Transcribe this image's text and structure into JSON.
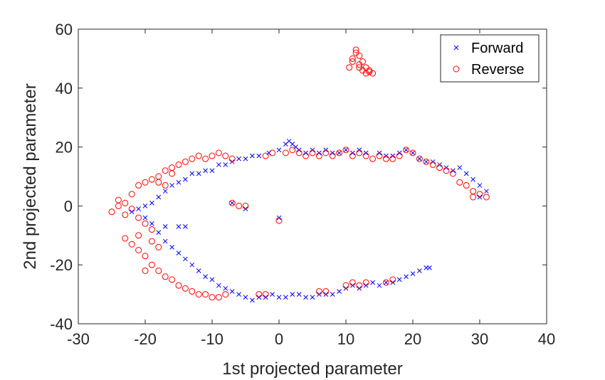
{
  "chart_data": {
    "type": "scatter",
    "title": "",
    "xlabel": "1st projected parameter",
    "ylabel": "2nd projected parameter",
    "xlim": [
      -30,
      40
    ],
    "ylim": [
      -40,
      60
    ],
    "xticks": [
      -30,
      -20,
      -10,
      0,
      10,
      20,
      30,
      40
    ],
    "yticks": [
      -40,
      -20,
      0,
      20,
      40,
      60
    ],
    "grid": false,
    "legend_position": "top-right",
    "series": [
      {
        "name": "Forward",
        "marker": "x",
        "color": "#0000ff",
        "points": [
          [
            -3,
            17
          ],
          [
            -1.5,
            18
          ],
          [
            0,
            19
          ],
          [
            1,
            21
          ],
          [
            1.5,
            22
          ],
          [
            2,
            21
          ],
          [
            2.5,
            20
          ],
          [
            3,
            19
          ],
          [
            4,
            18
          ],
          [
            5,
            19
          ],
          [
            6,
            18
          ],
          [
            7,
            19
          ],
          [
            8,
            18
          ],
          [
            9,
            18
          ],
          [
            10,
            19
          ],
          [
            11,
            18
          ],
          [
            12,
            19
          ],
          [
            13,
            18
          ],
          [
            15,
            18
          ],
          [
            16,
            17
          ],
          [
            17,
            17
          ],
          [
            18,
            18
          ],
          [
            19,
            19
          ],
          [
            20,
            18
          ],
          [
            21,
            16
          ],
          [
            22,
            15
          ],
          [
            23,
            15
          ],
          [
            24,
            14
          ],
          [
            25,
            13
          ],
          [
            26,
            12
          ],
          [
            27,
            13
          ],
          [
            28,
            11
          ],
          [
            29,
            9
          ],
          [
            30,
            7
          ],
          [
            31,
            5
          ],
          [
            30,
            3
          ],
          [
            -4,
            17
          ],
          [
            -5,
            16
          ],
          [
            -6,
            16
          ],
          [
            -7,
            15
          ],
          [
            -8,
            14
          ],
          [
            -9,
            14
          ],
          [
            -10,
            12
          ],
          [
            -11,
            12
          ],
          [
            -12,
            11
          ],
          [
            -13,
            11
          ],
          [
            -14,
            9
          ],
          [
            -15,
            8
          ],
          [
            -16,
            7
          ],
          [
            -17,
            5
          ],
          [
            -18,
            3
          ],
          [
            -19,
            1
          ],
          [
            -20,
            0
          ],
          [
            -21,
            -1
          ],
          [
            -22,
            -2
          ],
          [
            -20,
            -4
          ],
          [
            -19,
            -6
          ],
          [
            -17,
            -7
          ],
          [
            -15,
            -7
          ],
          [
            -18,
            -9
          ],
          [
            -17,
            -12
          ],
          [
            -16,
            -14
          ],
          [
            -15,
            -16
          ],
          [
            -14,
            -18
          ],
          [
            -13,
            -20
          ],
          [
            -12,
            -22
          ],
          [
            -11,
            -24
          ],
          [
            -10,
            -25
          ],
          [
            -9,
            -27
          ],
          [
            -8,
            -28
          ],
          [
            -7,
            -29
          ],
          [
            -6,
            -30
          ],
          [
            -5,
            -31
          ],
          [
            -4,
            -32
          ],
          [
            -3,
            -31
          ],
          [
            -2,
            -31
          ],
          [
            -1,
            -30
          ],
          [
            0,
            -31
          ],
          [
            1,
            -31
          ],
          [
            2,
            -30
          ],
          [
            3,
            -30
          ],
          [
            4,
            -31
          ],
          [
            5,
            -31
          ],
          [
            6,
            -30
          ],
          [
            7,
            -30
          ],
          [
            8,
            -30
          ],
          [
            9,
            -29
          ],
          [
            10,
            -28
          ],
          [
            11,
            -27
          ],
          [
            12,
            -28
          ],
          [
            13,
            -27
          ],
          [
            14,
            -26
          ],
          [
            15,
            -27
          ],
          [
            16,
            -26
          ],
          [
            17,
            -26
          ],
          [
            18,
            -25
          ],
          [
            19,
            -24
          ],
          [
            20,
            -23
          ],
          [
            21,
            -22
          ],
          [
            22,
            -21
          ],
          [
            22.5,
            -21
          ],
          [
            -5,
            -1
          ],
          [
            -7,
            1
          ],
          [
            0,
            -4
          ],
          [
            -14,
            -7
          ]
        ]
      },
      {
        "name": "Reverse",
        "marker": "o",
        "color": "#ff0000",
        "points": [
          [
            -25,
            -2
          ],
          [
            -24,
            0
          ],
          [
            -24,
            2
          ],
          [
            -23,
            -3
          ],
          [
            -23,
            1
          ],
          [
            -22,
            4
          ],
          [
            -22,
            -1
          ],
          [
            -21,
            7
          ],
          [
            -21,
            -4
          ],
          [
            -20,
            8
          ],
          [
            -20,
            -6
          ],
          [
            -19,
            9
          ],
          [
            -19,
            -8
          ],
          [
            -18,
            10
          ],
          [
            -18,
            8
          ],
          [
            -17,
            12
          ],
          [
            -17,
            7
          ],
          [
            -16,
            13
          ],
          [
            -16,
            11
          ],
          [
            -15,
            14
          ],
          [
            -14,
            15
          ],
          [
            -13,
            16
          ],
          [
            -12,
            17
          ],
          [
            -11,
            16
          ],
          [
            -10,
            17
          ],
          [
            -9,
            18
          ],
          [
            -8,
            17
          ],
          [
            -7,
            16
          ],
          [
            -2,
            17
          ],
          [
            -1,
            18
          ],
          [
            1,
            18
          ],
          [
            2,
            19
          ],
          [
            3,
            18
          ],
          [
            4,
            17
          ],
          [
            5,
            18
          ],
          [
            6,
            17
          ],
          [
            7,
            18
          ],
          [
            8,
            17
          ],
          [
            9,
            18
          ],
          [
            10,
            19
          ],
          [
            11,
            17
          ],
          [
            12,
            18
          ],
          [
            13,
            17
          ],
          [
            14,
            16
          ],
          [
            15,
            17
          ],
          [
            16,
            16
          ],
          [
            17,
            16
          ],
          [
            18,
            17
          ],
          [
            19,
            19
          ],
          [
            20,
            18
          ],
          [
            21,
            16
          ],
          [
            22,
            15
          ],
          [
            23,
            14
          ],
          [
            24,
            13
          ],
          [
            25,
            12
          ],
          [
            26,
            11
          ],
          [
            27,
            8
          ],
          [
            28,
            7
          ],
          [
            29,
            5
          ],
          [
            29,
            3
          ],
          [
            30,
            4
          ],
          [
            31,
            3
          ],
          [
            -23,
            -11
          ],
          [
            -22,
            -13
          ],
          [
            -21,
            -15
          ],
          [
            -20,
            -17
          ],
          [
            -19,
            -20
          ],
          [
            -18,
            -22
          ],
          [
            -20,
            -22
          ],
          [
            -21,
            -10
          ],
          [
            -19,
            -12
          ],
          [
            -18,
            -14
          ],
          [
            -17,
            -24
          ],
          [
            -16,
            -25
          ],
          [
            -15,
            -27
          ],
          [
            -14,
            -28
          ],
          [
            -13,
            -29
          ],
          [
            -12,
            -30
          ],
          [
            -11,
            -30
          ],
          [
            -10,
            -31
          ],
          [
            -9,
            -31
          ],
          [
            -8,
            -30
          ],
          [
            -3,
            -30
          ],
          [
            -2,
            -30
          ],
          [
            6,
            -29
          ],
          [
            7,
            -29
          ],
          [
            10,
            -27
          ],
          [
            11,
            -26
          ],
          [
            12,
            -27
          ],
          [
            13,
            -26
          ],
          [
            16,
            -26
          ],
          [
            17,
            -25
          ],
          [
            -7,
            1
          ],
          [
            -6,
            0
          ],
          [
            -5,
            0
          ],
          [
            0,
            -5
          ],
          [
            10.5,
            47
          ],
          [
            11,
            50
          ],
          [
            11.5,
            52
          ],
          [
            12,
            51
          ],
          [
            12.5,
            49
          ],
          [
            13,
            47
          ],
          [
            13.5,
            46
          ],
          [
            14,
            45
          ],
          [
            11.5,
            53
          ],
          [
            12,
            48
          ],
          [
            12.5,
            46
          ],
          [
            13,
            45
          ],
          [
            13.5,
            45.5
          ],
          [
            12,
            47
          ],
          [
            11,
            49
          ]
        ]
      }
    ]
  }
}
